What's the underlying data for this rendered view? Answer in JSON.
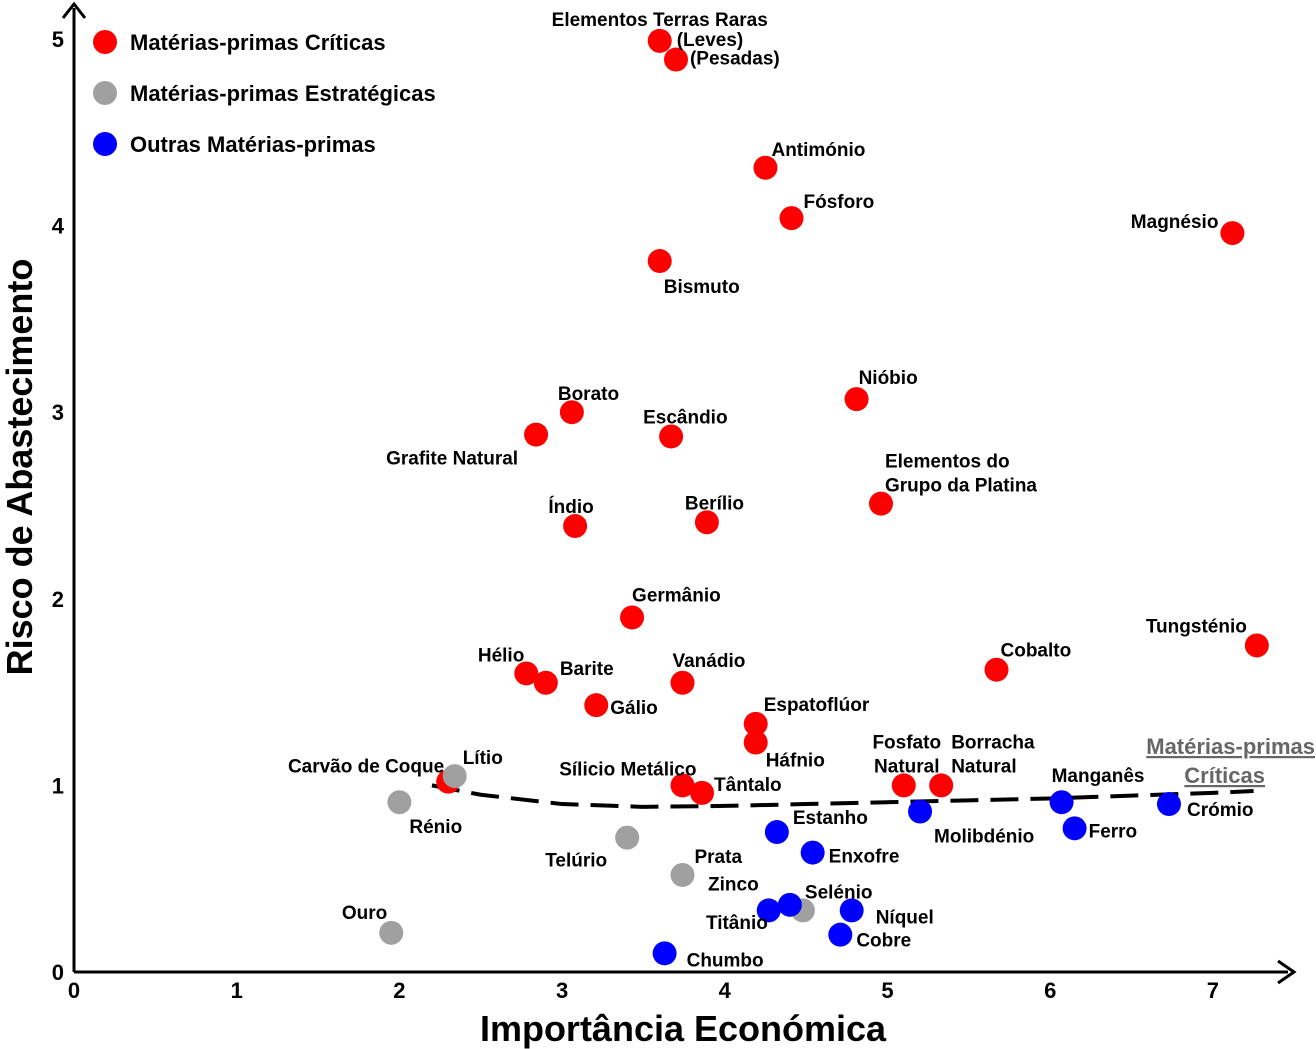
{
  "chart_data": {
    "type": "scatter",
    "xlabel": "Importância Económica",
    "ylabel": "Risco de Abastecimento",
    "xlim": [
      0,
      7.5
    ],
    "ylim": [
      0,
      5.2
    ],
    "x_ticks": [
      0,
      1,
      2,
      3,
      4,
      5,
      6,
      7
    ],
    "y_ticks": [
      0,
      1,
      2,
      3,
      4,
      5
    ],
    "grid": false,
    "legend_position": "top-left",
    "colors": {
      "critical": "#ff0000",
      "strategic": "#a0a0a0",
      "other": "#0000ff"
    },
    "series": [
      {
        "name": "Matérias-primas Críticas",
        "key": "critical",
        "points": [
          {
            "label": "Elementos Terras Raras (Leves)",
            "x": 3.6,
            "y": 4.99
          },
          {
            "label": "(Pesadas)",
            "x": 3.7,
            "y": 4.89
          },
          {
            "label": "Antimónio",
            "x": 4.25,
            "y": 4.31
          },
          {
            "label": "Fósforo",
            "x": 4.41,
            "y": 4.04
          },
          {
            "label": "Magnésio",
            "x": 7.12,
            "y": 3.96
          },
          {
            "label": "Bismuto",
            "x": 3.6,
            "y": 3.81
          },
          {
            "label": "Borato",
            "x": 3.06,
            "y": 3.0
          },
          {
            "label": "Nióbio",
            "x": 4.81,
            "y": 3.07
          },
          {
            "label": "Escândio",
            "x": 3.67,
            "y": 2.87
          },
          {
            "label": "Grafite Natural",
            "x": 2.84,
            "y": 2.88
          },
          {
            "label": "Elementos do Grupo da Platina",
            "x": 4.96,
            "y": 2.51
          },
          {
            "label": "Índio",
            "x": 3.08,
            "y": 2.39
          },
          {
            "label": "Berílio",
            "x": 3.89,
            "y": 2.41
          },
          {
            "label": "Germânio",
            "x": 3.43,
            "y": 1.9
          },
          {
            "label": "Tungsténio",
            "x": 7.27,
            "y": 1.75
          },
          {
            "label": "Cobalto",
            "x": 5.67,
            "y": 1.62
          },
          {
            "label": "Hélio",
            "x": 2.78,
            "y": 1.6
          },
          {
            "label": "Barite",
            "x": 2.9,
            "y": 1.55
          },
          {
            "label": "Vanádio",
            "x": 3.74,
            "y": 1.55
          },
          {
            "label": "Gálio",
            "x": 3.21,
            "y": 1.43
          },
          {
            "label": "Espatoflúor",
            "x": 4.19,
            "y": 1.33
          },
          {
            "label": "Háfnio",
            "x": 4.19,
            "y": 1.23
          },
          {
            "label": "Sílicio Metálico",
            "x": 3.74,
            "y": 1.0
          },
          {
            "label": "Tântalo",
            "x": 3.86,
            "y": 0.96
          },
          {
            "label": "Fosfato Natural",
            "x": 5.1,
            "y": 1.0
          },
          {
            "label": "Borracha Natural",
            "x": 5.33,
            "y": 1.0
          },
          {
            "label": "Carvão de Coque",
            "x": 2.3,
            "y": 1.02
          }
        ]
      },
      {
        "name": "Matérias-primas Estratégicas",
        "key": "strategic",
        "points": [
          {
            "label": "Lítio",
            "x": 2.34,
            "y": 1.05
          },
          {
            "label": "Rénio",
            "x": 2.0,
            "y": 0.91
          },
          {
            "label": "Telúrio",
            "x": 3.4,
            "y": 0.72
          },
          {
            "label": "Prata",
            "x": 3.74,
            "y": 0.52
          },
          {
            "label": "Ouro",
            "x": 1.95,
            "y": 0.21
          },
          {
            "label": "Selénio",
            "x": 4.48,
            "y": 0.33
          }
        ]
      },
      {
        "name": "Outras Matérias-primas",
        "key": "other",
        "points": [
          {
            "label": "Manganês",
            "x": 6.07,
            "y": 0.91
          },
          {
            "label": "Crómio",
            "x": 6.73,
            "y": 0.9
          },
          {
            "label": "Molibdénio",
            "x": 5.2,
            "y": 0.86
          },
          {
            "label": "Ferro",
            "x": 6.15,
            "y": 0.77
          },
          {
            "label": "Estanho",
            "x": 4.32,
            "y": 0.75
          },
          {
            "label": "Enxofre",
            "x": 4.54,
            "y": 0.64
          },
          {
            "label": "Zinco",
            "x": 4.27,
            "y": 0.33
          },
          {
            "label": "Titânio",
            "x": 4.4,
            "y": 0.36
          },
          {
            "label": "Níquel",
            "x": 4.78,
            "y": 0.33
          },
          {
            "label": "Cobre",
            "x": 4.71,
            "y": 0.2
          },
          {
            "label": "Chumbo",
            "x": 3.63,
            "y": 0.1
          }
        ]
      }
    ],
    "threshold_line": {
      "label": "Matérias-primas Críticas",
      "style": "dashed",
      "points": [
        [
          2.2,
          1.0
        ],
        [
          2.5,
          0.95
        ],
        [
          3.0,
          0.9
        ],
        [
          3.5,
          0.885
        ],
        [
          4.0,
          0.89
        ],
        [
          4.5,
          0.9
        ],
        [
          5.0,
          0.91
        ],
        [
          5.5,
          0.92
        ],
        [
          6.0,
          0.93
        ],
        [
          6.5,
          0.945
        ],
        [
          7.0,
          0.96
        ],
        [
          7.25,
          0.97
        ]
      ]
    }
  }
}
